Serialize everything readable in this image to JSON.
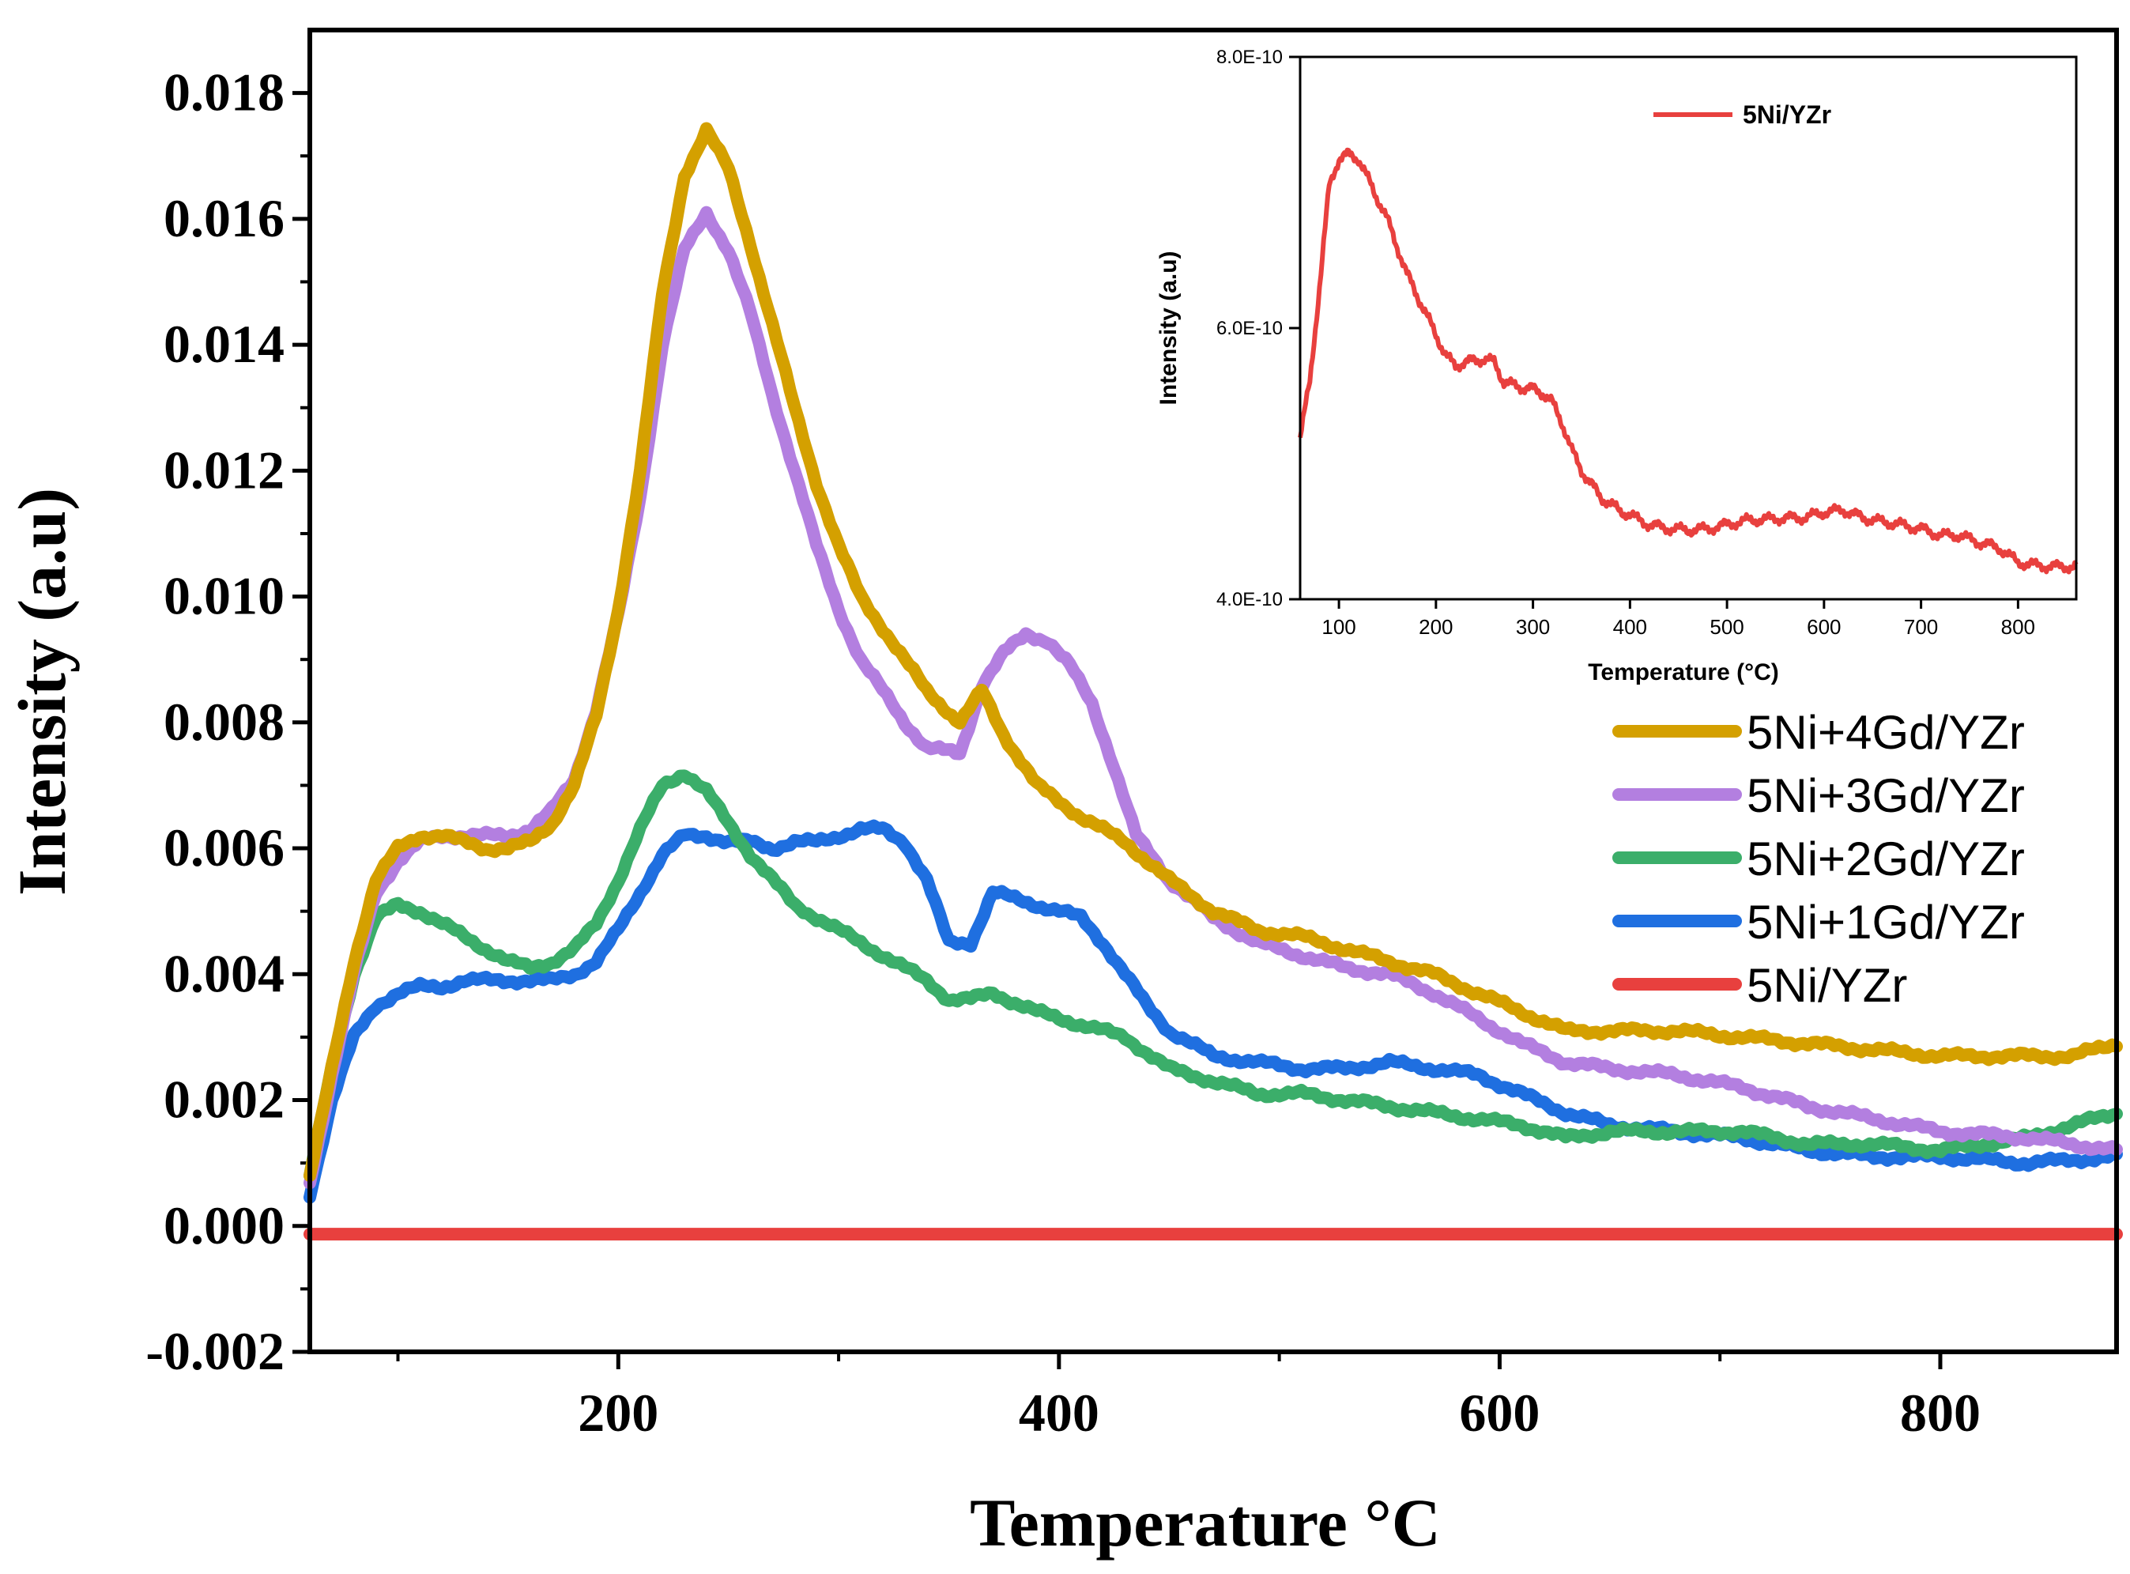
{
  "chart_data": [
    {
      "type": "line",
      "title": "",
      "xlabel": "Temperature °C",
      "ylabel": "Intensity (a.u)",
      "xlim": [
        60,
        880
      ],
      "ylim": [
        -0.002,
        0.019
      ],
      "xticks": [
        200,
        400,
        600,
        800
      ],
      "xtick_labels": [
        "200",
        "400",
        "600",
        "800"
      ],
      "yticks": [
        -0.002,
        0.0,
        0.002,
        0.004,
        0.006,
        0.008,
        0.01,
        0.012,
        0.014,
        0.016,
        0.018
      ],
      "ytick_labels": [
        "-0.002",
        "0.000",
        "0.002",
        "0.004",
        "0.006",
        "0.008",
        "0.010",
        "0.012",
        "0.014",
        "0.016",
        "0.018"
      ],
      "legend_position": "right",
      "series": [
        {
          "name": "5Ni+4Gd/YZr",
          "color": "#D4A000",
          "x": [
            60,
            70,
            80,
            90,
            100,
            110,
            120,
            130,
            140,
            150,
            160,
            170,
            180,
            190,
            200,
            210,
            220,
            230,
            240,
            250,
            260,
            270,
            280,
            290,
            300,
            310,
            320,
            330,
            340,
            355,
            365,
            375,
            390,
            410,
            430,
            450,
            470,
            490,
            510,
            530,
            550,
            570,
            590,
            610,
            630,
            650,
            680,
            710,
            740,
            770,
            800,
            820,
            840,
            860,
            880
          ],
          "y": [
            0.0008,
            0.0025,
            0.0042,
            0.0055,
            0.006,
            0.0062,
            0.0062,
            0.0061,
            0.006,
            0.006,
            0.0061,
            0.0064,
            0.007,
            0.0081,
            0.0098,
            0.012,
            0.0148,
            0.0167,
            0.0174,
            0.0168,
            0.0156,
            0.0143,
            0.013,
            0.0118,
            0.0108,
            0.01,
            0.0095,
            0.009,
            0.0085,
            0.008,
            0.0085,
            0.0078,
            0.007,
            0.0065,
            0.0061,
            0.0055,
            0.005,
            0.0047,
            0.0046,
            0.0044,
            0.0042,
            0.004,
            0.0037,
            0.0034,
            0.0031,
            0.0031,
            0.0031,
            0.003,
            0.0029,
            0.0028,
            0.0027,
            0.0027,
            0.0027,
            0.0027,
            0.0029
          ]
        },
        {
          "name": "5Ni+3Gd/YZr",
          "color": "#B37FE0",
          "x": [
            60,
            70,
            80,
            90,
            100,
            110,
            120,
            130,
            140,
            150,
            160,
            170,
            180,
            190,
            200,
            210,
            220,
            230,
            240,
            250,
            260,
            270,
            280,
            290,
            300,
            310,
            320,
            330,
            340,
            355,
            365,
            375,
            385,
            395,
            405,
            415,
            425,
            435,
            450,
            470,
            490,
            510,
            530,
            550,
            570,
            590,
            610,
            630,
            650,
            680,
            710,
            740,
            770,
            800,
            840,
            880
          ],
          "y": [
            0.0007,
            0.0024,
            0.004,
            0.0053,
            0.0058,
            0.0061,
            0.0062,
            0.0062,
            0.0062,
            0.0062,
            0.0063,
            0.0066,
            0.0071,
            0.0082,
            0.0097,
            0.0116,
            0.014,
            0.0155,
            0.0161,
            0.0155,
            0.0145,
            0.0132,
            0.012,
            0.0108,
            0.0098,
            0.009,
            0.0085,
            0.008,
            0.0076,
            0.0075,
            0.0086,
            0.0091,
            0.0094,
            0.0093,
            0.0089,
            0.0083,
            0.0073,
            0.0062,
            0.0055,
            0.0049,
            0.0045,
            0.0043,
            0.0041,
            0.004,
            0.0037,
            0.0033,
            0.0029,
            0.0026,
            0.0025,
            0.0024,
            0.0022,
            0.0019,
            0.0017,
            0.0015,
            0.0014,
            0.0012
          ]
        },
        {
          "name": "5Ni+2Gd/YZr",
          "color": "#3BAE6A",
          "x": [
            60,
            70,
            80,
            90,
            100,
            110,
            120,
            130,
            140,
            150,
            160,
            170,
            180,
            190,
            200,
            210,
            220,
            230,
            240,
            250,
            260,
            270,
            280,
            300,
            320,
            340,
            350,
            360,
            370,
            390,
            410,
            430,
            450,
            470,
            490,
            510,
            530,
            550,
            570,
            590,
            610,
            630,
            650,
            680,
            710,
            740,
            770,
            800,
            820,
            840,
            860,
            880
          ],
          "y": [
            0.0008,
            0.0025,
            0.004,
            0.0049,
            0.0051,
            0.005,
            0.0048,
            0.0046,
            0.0044,
            0.0042,
            0.0041,
            0.0042,
            0.0044,
            0.0048,
            0.0055,
            0.0063,
            0.007,
            0.0072,
            0.0069,
            0.0064,
            0.0059,
            0.0055,
            0.0051,
            0.0047,
            0.0043,
            0.0039,
            0.0036,
            0.0036,
            0.0037,
            0.0034,
            0.0032,
            0.003,
            0.0025,
            0.0023,
            0.0021,
            0.0021,
            0.002,
            0.0019,
            0.0018,
            0.0017,
            0.0016,
            0.0014,
            0.0015,
            0.0015,
            0.0015,
            0.0013,
            0.0013,
            0.0012,
            0.0013,
            0.0014,
            0.0016,
            0.0018
          ]
        },
        {
          "name": "5Ni+1Gd/YZr",
          "color": "#1F6FE0",
          "x": [
            60,
            70,
            80,
            90,
            100,
            110,
            120,
            130,
            140,
            150,
            160,
            170,
            180,
            190,
            200,
            210,
            220,
            230,
            240,
            250,
            260,
            270,
            280,
            290,
            300,
            310,
            320,
            330,
            340,
            350,
            360,
            370,
            380,
            390,
            400,
            410,
            420,
            430,
            440,
            450,
            470,
            490,
            510,
            530,
            550,
            570,
            590,
            610,
            630,
            650,
            680,
            710,
            740,
            770,
            800,
            840,
            880
          ],
          "y": [
            0.0005,
            0.002,
            0.003,
            0.0035,
            0.0037,
            0.0038,
            0.0038,
            0.0039,
            0.0039,
            0.0039,
            0.0039,
            0.0039,
            0.004,
            0.0042,
            0.0047,
            0.0053,
            0.0059,
            0.0062,
            0.0062,
            0.0061,
            0.0061,
            0.006,
            0.0061,
            0.0061,
            0.0062,
            0.0063,
            0.0063,
            0.0061,
            0.0055,
            0.0045,
            0.0045,
            0.0053,
            0.0052,
            0.0051,
            0.005,
            0.0049,
            0.0045,
            0.004,
            0.0035,
            0.0031,
            0.0027,
            0.0026,
            0.0025,
            0.0025,
            0.0026,
            0.0025,
            0.0024,
            0.0021,
            0.0018,
            0.0016,
            0.0015,
            0.0014,
            0.0012,
            0.0011,
            0.0011,
            0.001,
            0.0011
          ]
        },
        {
          "name": "5Ni/YZr",
          "color": "#E8403E",
          "x": [
            60,
            880
          ],
          "y": [
            -0.00013,
            -0.00013
          ]
        }
      ]
    },
    {
      "type": "line",
      "title": "",
      "xlabel": "Temperature (°C)",
      "ylabel": "Intensity (a.u)",
      "xlim": [
        60,
        860
      ],
      "ylim": [
        4e-10,
        8e-10
      ],
      "xticks": [
        100,
        200,
        300,
        400,
        500,
        600,
        700,
        800
      ],
      "xtick_labels": [
        "100",
        "200",
        "300",
        "400",
        "500",
        "600",
        "700",
        "800"
      ],
      "yticks": [
        4e-10,
        6e-10,
        8e-10
      ],
      "ytick_labels": [
        "4.0E-10",
        "6.0E-10",
        "8.0E-10"
      ],
      "legend_position": "top",
      "series": [
        {
          "name": "5Ni/YZr",
          "color": "#E8403E",
          "x": [
            60,
            70,
            80,
            90,
            100,
            110,
            120,
            130,
            140,
            150,
            160,
            170,
            180,
            190,
            200,
            210,
            220,
            230,
            240,
            250,
            260,
            270,
            280,
            290,
            300,
            310,
            320,
            330,
            340,
            350,
            360,
            370,
            380,
            390,
            400,
            420,
            440,
            460,
            480,
            500,
            520,
            540,
            560,
            580,
            600,
            620,
            640,
            660,
            680,
            700,
            720,
            740,
            760,
            780,
            800,
            820,
            840,
            860
          ],
          "y": [
            5.2e-10,
            5.6e-10,
            6.3e-10,
            7.05e-10,
            7.25e-10,
            7.28e-10,
            7.25e-10,
            7.1e-10,
            6.95e-10,
            6.8e-10,
            6.6e-10,
            6.4e-10,
            6.25e-10,
            6.1e-10,
            5.95e-10,
            5.8e-10,
            5.72e-10,
            5.75e-10,
            5.76e-10,
            5.77e-10,
            5.75e-10,
            5.6e-10,
            5.58e-10,
            5.56e-10,
            5.55e-10,
            5.52e-10,
            5.45e-10,
            5.3e-10,
            5.1e-10,
            4.95e-10,
            4.85e-10,
            4.75e-10,
            4.7e-10,
            4.65e-10,
            4.62e-10,
            4.55e-10,
            4.52e-10,
            4.51e-10,
            4.52e-10,
            4.55e-10,
            4.58e-10,
            4.59e-10,
            4.6e-10,
            4.6e-10,
            4.64e-10,
            4.66e-10,
            4.6e-10,
            4.57e-10,
            4.55e-10,
            4.52e-10,
            4.47e-10,
            4.47e-10,
            4.42e-10,
            4.38e-10,
            4.27e-10,
            4.25e-10,
            4.24e-10,
            4.24e-10
          ]
        }
      ]
    }
  ]
}
